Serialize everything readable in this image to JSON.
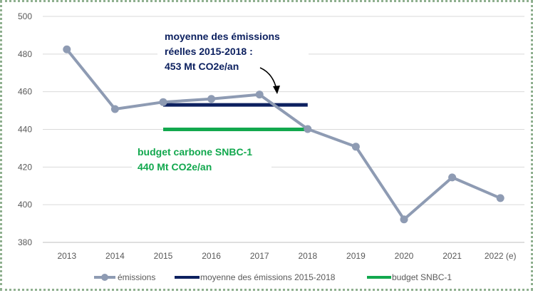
{
  "chart_data": {
    "type": "line",
    "title": "",
    "xlabel": "",
    "ylabel": "",
    "categories": [
      "2013",
      "2014",
      "2015",
      "2016",
      "2017",
      "2018",
      "2019",
      "2020",
      "2021",
      "2022 (e)"
    ],
    "ylim": [
      380,
      500
    ],
    "yticks": [
      380,
      400,
      420,
      440,
      460,
      480,
      500
    ],
    "grid": true,
    "legend_position": "bottom",
    "series": [
      {
        "name": "émissions",
        "color": "#8e9bb3",
        "marker": "circle",
        "values": [
          482.5,
          450.8,
          454.5,
          456.2,
          458.5,
          440.2,
          430.8,
          392.2,
          414.5,
          403.5
        ]
      },
      {
        "name": "moyenne des émissions 2015-2018",
        "color": "#0d2160",
        "x_range": [
          "2015",
          "2018"
        ],
        "value": 453
      },
      {
        "name": "budget SNBC-1",
        "color": "#12a84e",
        "x_range": [
          "2015",
          "2018"
        ],
        "value": 440
      }
    ],
    "annotations": [
      {
        "id": "navy",
        "color": "#0d2160",
        "lines": [
          "moyenne des émissions",
          "réelles 2015-2018 :",
          "453 Mt CO2e/an"
        ]
      },
      {
        "id": "green",
        "color": "#12a84e",
        "lines": [
          "budget carbone SNBC-1",
          "440 Mt CO2e/an"
        ]
      }
    ]
  }
}
